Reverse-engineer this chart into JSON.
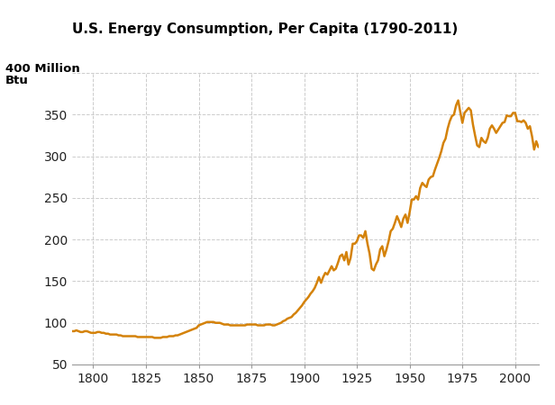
{
  "title": "U.S. Energy Consumption, Per Capita (1790-2011)",
  "ylabel_line1": "400 Million",
  "ylabel_line2": "Btu",
  "line_color": "#D4820A",
  "background_color": "#ffffff",
  "grid_color": "#cccccc",
  "xlim": [
    1790,
    2011
  ],
  "ylim": [
    50,
    400
  ],
  "yticks": [
    50,
    100,
    150,
    200,
    250,
    300,
    350,
    400
  ],
  "xticks": [
    1800,
    1825,
    1850,
    1875,
    1900,
    1925,
    1950,
    1975,
    2000
  ],
  "data": [
    [
      1790,
      90
    ],
    [
      1791,
      90
    ],
    [
      1792,
      91
    ],
    [
      1793,
      90
    ],
    [
      1794,
      89
    ],
    [
      1795,
      89
    ],
    [
      1796,
      90
    ],
    [
      1797,
      90
    ],
    [
      1798,
      89
    ],
    [
      1799,
      88
    ],
    [
      1800,
      88
    ],
    [
      1801,
      88
    ],
    [
      1802,
      89
    ],
    [
      1803,
      89
    ],
    [
      1804,
      88
    ],
    [
      1805,
      88
    ],
    [
      1806,
      87
    ],
    [
      1807,
      87
    ],
    [
      1808,
      86
    ],
    [
      1809,
      86
    ],
    [
      1810,
      86
    ],
    [
      1811,
      86
    ],
    [
      1812,
      85
    ],
    [
      1813,
      85
    ],
    [
      1814,
      84
    ],
    [
      1815,
      84
    ],
    [
      1816,
      84
    ],
    [
      1817,
      84
    ],
    [
      1818,
      84
    ],
    [
      1819,
      84
    ],
    [
      1820,
      84
    ],
    [
      1821,
      83
    ],
    [
      1822,
      83
    ],
    [
      1823,
      83
    ],
    [
      1824,
      83
    ],
    [
      1825,
      83
    ],
    [
      1826,
      83
    ],
    [
      1827,
      83
    ],
    [
      1828,
      83
    ],
    [
      1829,
      82
    ],
    [
      1830,
      82
    ],
    [
      1831,
      82
    ],
    [
      1832,
      82
    ],
    [
      1833,
      83
    ],
    [
      1834,
      83
    ],
    [
      1835,
      83
    ],
    [
      1836,
      84
    ],
    [
      1837,
      84
    ],
    [
      1838,
      84
    ],
    [
      1839,
      85
    ],
    [
      1840,
      85
    ],
    [
      1841,
      86
    ],
    [
      1842,
      87
    ],
    [
      1843,
      88
    ],
    [
      1844,
      89
    ],
    [
      1845,
      90
    ],
    [
      1846,
      91
    ],
    [
      1847,
      92
    ],
    [
      1848,
      93
    ],
    [
      1849,
      94
    ],
    [
      1850,
      97
    ],
    [
      1851,
      98
    ],
    [
      1852,
      99
    ],
    [
      1853,
      100
    ],
    [
      1854,
      101
    ],
    [
      1855,
      101
    ],
    [
      1856,
      101
    ],
    [
      1857,
      101
    ],
    [
      1858,
      100
    ],
    [
      1859,
      100
    ],
    [
      1860,
      100
    ],
    [
      1861,
      99
    ],
    [
      1862,
      98
    ],
    [
      1863,
      98
    ],
    [
      1864,
      98
    ],
    [
      1865,
      97
    ],
    [
      1866,
      97
    ],
    [
      1867,
      97
    ],
    [
      1868,
      97
    ],
    [
      1869,
      97
    ],
    [
      1870,
      97
    ],
    [
      1871,
      97
    ],
    [
      1872,
      97
    ],
    [
      1873,
      98
    ],
    [
      1874,
      98
    ],
    [
      1875,
      98
    ],
    [
      1876,
      98
    ],
    [
      1877,
      98
    ],
    [
      1878,
      97
    ],
    [
      1879,
      97
    ],
    [
      1880,
      97
    ],
    [
      1881,
      97
    ],
    [
      1882,
      98
    ],
    [
      1883,
      98
    ],
    [
      1884,
      98
    ],
    [
      1885,
      97
    ],
    [
      1886,
      97
    ],
    [
      1887,
      98
    ],
    [
      1888,
      99
    ],
    [
      1889,
      100
    ],
    [
      1890,
      102
    ],
    [
      1891,
      103
    ],
    [
      1892,
      105
    ],
    [
      1893,
      106
    ],
    [
      1894,
      107
    ],
    [
      1895,
      110
    ],
    [
      1896,
      112
    ],
    [
      1897,
      115
    ],
    [
      1898,
      118
    ],
    [
      1899,
      121
    ],
    [
      1900,
      125
    ],
    [
      1901,
      128
    ],
    [
      1902,
      131
    ],
    [
      1903,
      135
    ],
    [
      1904,
      138
    ],
    [
      1905,
      142
    ],
    [
      1906,
      148
    ],
    [
      1907,
      155
    ],
    [
      1908,
      148
    ],
    [
      1909,
      155
    ],
    [
      1910,
      160
    ],
    [
      1911,
      158
    ],
    [
      1912,
      163
    ],
    [
      1913,
      168
    ],
    [
      1914,
      163
    ],
    [
      1915,
      165
    ],
    [
      1916,
      172
    ],
    [
      1917,
      180
    ],
    [
      1918,
      182
    ],
    [
      1919,
      175
    ],
    [
      1920,
      185
    ],
    [
      1921,
      170
    ],
    [
      1922,
      178
    ],
    [
      1923,
      195
    ],
    [
      1924,
      195
    ],
    [
      1925,
      198
    ],
    [
      1926,
      205
    ],
    [
      1927,
      205
    ],
    [
      1928,
      202
    ],
    [
      1929,
      210
    ],
    [
      1930,
      195
    ],
    [
      1931,
      183
    ],
    [
      1932,
      165
    ],
    [
      1933,
      163
    ],
    [
      1934,
      170
    ],
    [
      1935,
      175
    ],
    [
      1936,
      188
    ],
    [
      1937,
      192
    ],
    [
      1938,
      180
    ],
    [
      1939,
      188
    ],
    [
      1940,
      198
    ],
    [
      1941,
      210
    ],
    [
      1942,
      213
    ],
    [
      1943,
      220
    ],
    [
      1944,
      228
    ],
    [
      1945,
      222
    ],
    [
      1946,
      215
    ],
    [
      1947,
      225
    ],
    [
      1948,
      230
    ],
    [
      1949,
      220
    ],
    [
      1950,
      233
    ],
    [
      1951,
      248
    ],
    [
      1952,
      248
    ],
    [
      1953,
      252
    ],
    [
      1954,
      248
    ],
    [
      1955,
      262
    ],
    [
      1956,
      268
    ],
    [
      1957,
      265
    ],
    [
      1958,
      263
    ],
    [
      1959,
      272
    ],
    [
      1960,
      275
    ],
    [
      1961,
      276
    ],
    [
      1962,
      284
    ],
    [
      1963,
      291
    ],
    [
      1964,
      298
    ],
    [
      1965,
      306
    ],
    [
      1966,
      316
    ],
    [
      1967,
      321
    ],
    [
      1968,
      333
    ],
    [
      1969,
      342
    ],
    [
      1970,
      348
    ],
    [
      1971,
      350
    ],
    [
      1972,
      361
    ],
    [
      1973,
      367
    ],
    [
      1974,
      353
    ],
    [
      1975,
      340
    ],
    [
      1976,
      352
    ],
    [
      1977,
      355
    ],
    [
      1978,
      358
    ],
    [
      1979,
      355
    ],
    [
      1980,
      338
    ],
    [
      1981,
      325
    ],
    [
      1982,
      313
    ],
    [
      1983,
      311
    ],
    [
      1984,
      322
    ],
    [
      1985,
      318
    ],
    [
      1986,
      316
    ],
    [
      1987,
      322
    ],
    [
      1988,
      333
    ],
    [
      1989,
      337
    ],
    [
      1990,
      333
    ],
    [
      1991,
      328
    ],
    [
      1992,
      332
    ],
    [
      1993,
      336
    ],
    [
      1994,
      340
    ],
    [
      1995,
      341
    ],
    [
      1996,
      349
    ],
    [
      1997,
      348
    ],
    [
      1998,
      348
    ],
    [
      1999,
      352
    ],
    [
      2000,
      352
    ],
    [
      2001,
      342
    ],
    [
      2002,
      342
    ],
    [
      2003,
      341
    ],
    [
      2004,
      343
    ],
    [
      2005,
      340
    ],
    [
      2006,
      333
    ],
    [
      2007,
      336
    ],
    [
      2008,
      324
    ],
    [
      2009,
      308
    ],
    [
      2010,
      318
    ],
    [
      2011,
      311
    ]
  ]
}
